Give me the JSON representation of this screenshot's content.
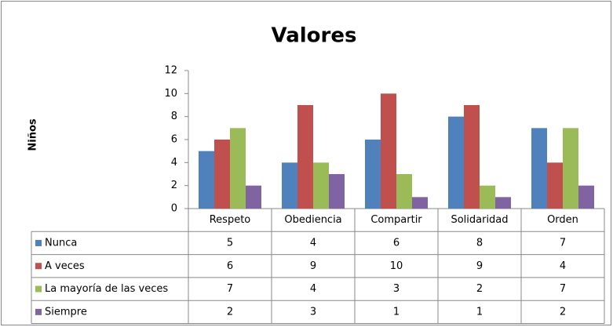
{
  "chart_data": {
    "type": "bar",
    "title": "Valores",
    "y_label": "Niños",
    "categories": [
      "Respeto",
      "Obediencia",
      "Compartir",
      "Solidaridad",
      "Orden"
    ],
    "series": [
      {
        "name": "Nunca",
        "color": "#4f81bd",
        "values": [
          5,
          4,
          6,
          8,
          7
        ]
      },
      {
        "name": "A veces",
        "color": "#c0504d",
        "values": [
          6,
          9,
          10,
          9,
          4
        ]
      },
      {
        "name": "La mayoría de las veces",
        "color": "#9bbb59",
        "values": [
          7,
          4,
          3,
          2,
          7
        ]
      },
      {
        "name": "Siempre",
        "color": "#8064a2",
        "values": [
          2,
          3,
          1,
          1,
          2
        ]
      }
    ],
    "ylim": [
      0,
      12
    ],
    "yticks": [
      0,
      2,
      4,
      6,
      8,
      10,
      12
    ],
    "grid": false
  }
}
